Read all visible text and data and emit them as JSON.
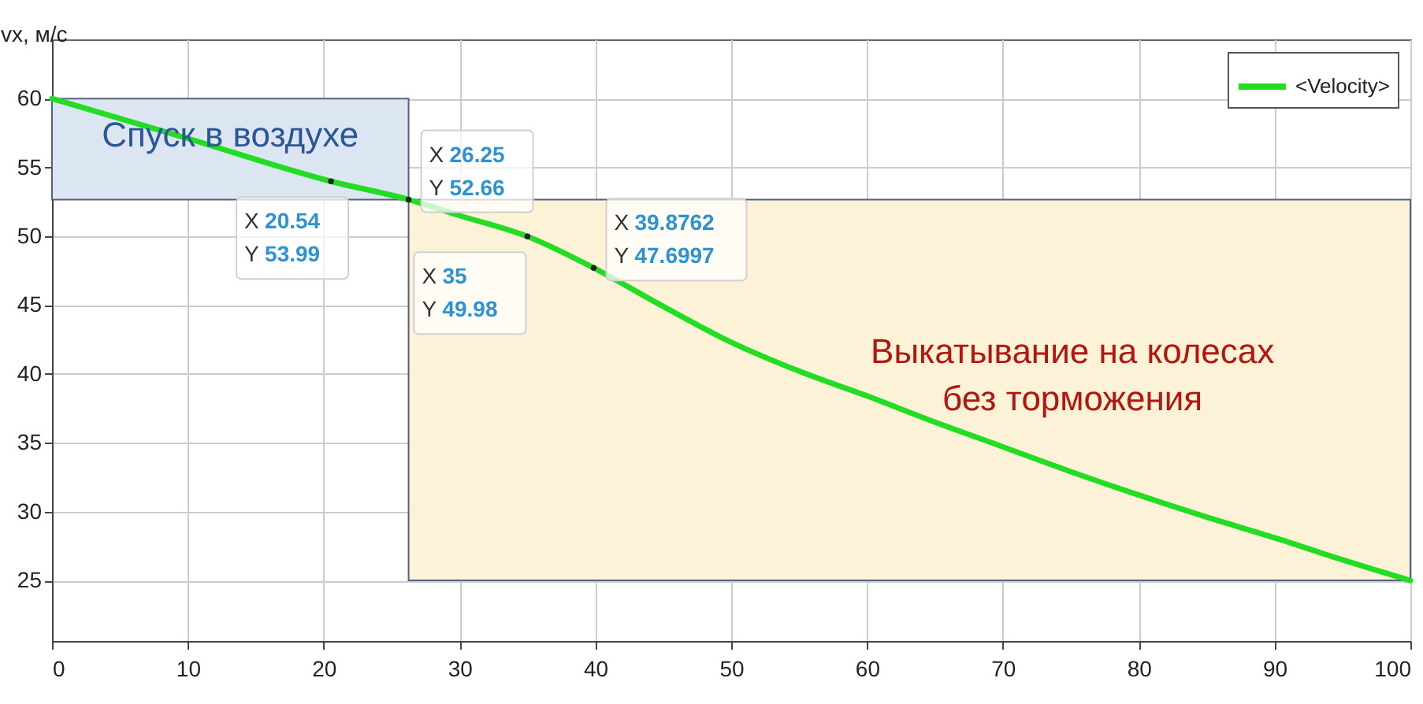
{
  "chart_data": {
    "type": "line",
    "ylabel": "vx, м/с",
    "x": [
      0,
      10,
      20.54,
      26.25,
      30,
      35,
      39.8762,
      45,
      50,
      55,
      60,
      65,
      70,
      75,
      80,
      85,
      90,
      95,
      100
    ],
    "series": [
      {
        "name": "<Velocity>",
        "color": "#22dd22",
        "values": [
          60,
          57.1,
          53.99,
          52.66,
          51.5,
          49.98,
          47.6997,
          44.9,
          42.3,
          40.2,
          38.4,
          36.5,
          34.7,
          32.9,
          31.2,
          29.6,
          28.1,
          26.5,
          25
        ]
      }
    ],
    "xlim": [
      0,
      100
    ],
    "xticks": [
      0,
      10,
      20,
      30,
      40,
      50,
      60,
      70,
      80,
      90,
      100
    ],
    "ylim": [
      20.6,
      64.3
    ],
    "yticks": [
      25,
      30,
      35,
      40,
      45,
      50,
      55,
      60
    ],
    "bands": [
      {
        "axis": "x",
        "from": 0,
        "to": 26.25,
        "label": "Спуск в воздухе",
        "color": "#dce5f2"
      },
      {
        "axis": "x",
        "from": 26.25,
        "to": 100,
        "label": "Выкатывание на колесах\nбез торможения",
        "color": "#fcf2d8"
      }
    ],
    "annotations": [
      {
        "text": "X 20.54\nY 53.99",
        "x": 20.54,
        "y": 53.99
      },
      {
        "text": "X 26.25\nY 52.66",
        "x": 26.25,
        "y": 52.66
      },
      {
        "text": "X 35\nY 49.98",
        "x": 35,
        "y": 49.98
      },
      {
        "text": "X 39.8762\nY 47.6997",
        "x": 39.8762,
        "y": 47.6997
      }
    ],
    "grid": true,
    "legend": "top right",
    "marker": "none",
    "line_style": "solid"
  }
}
